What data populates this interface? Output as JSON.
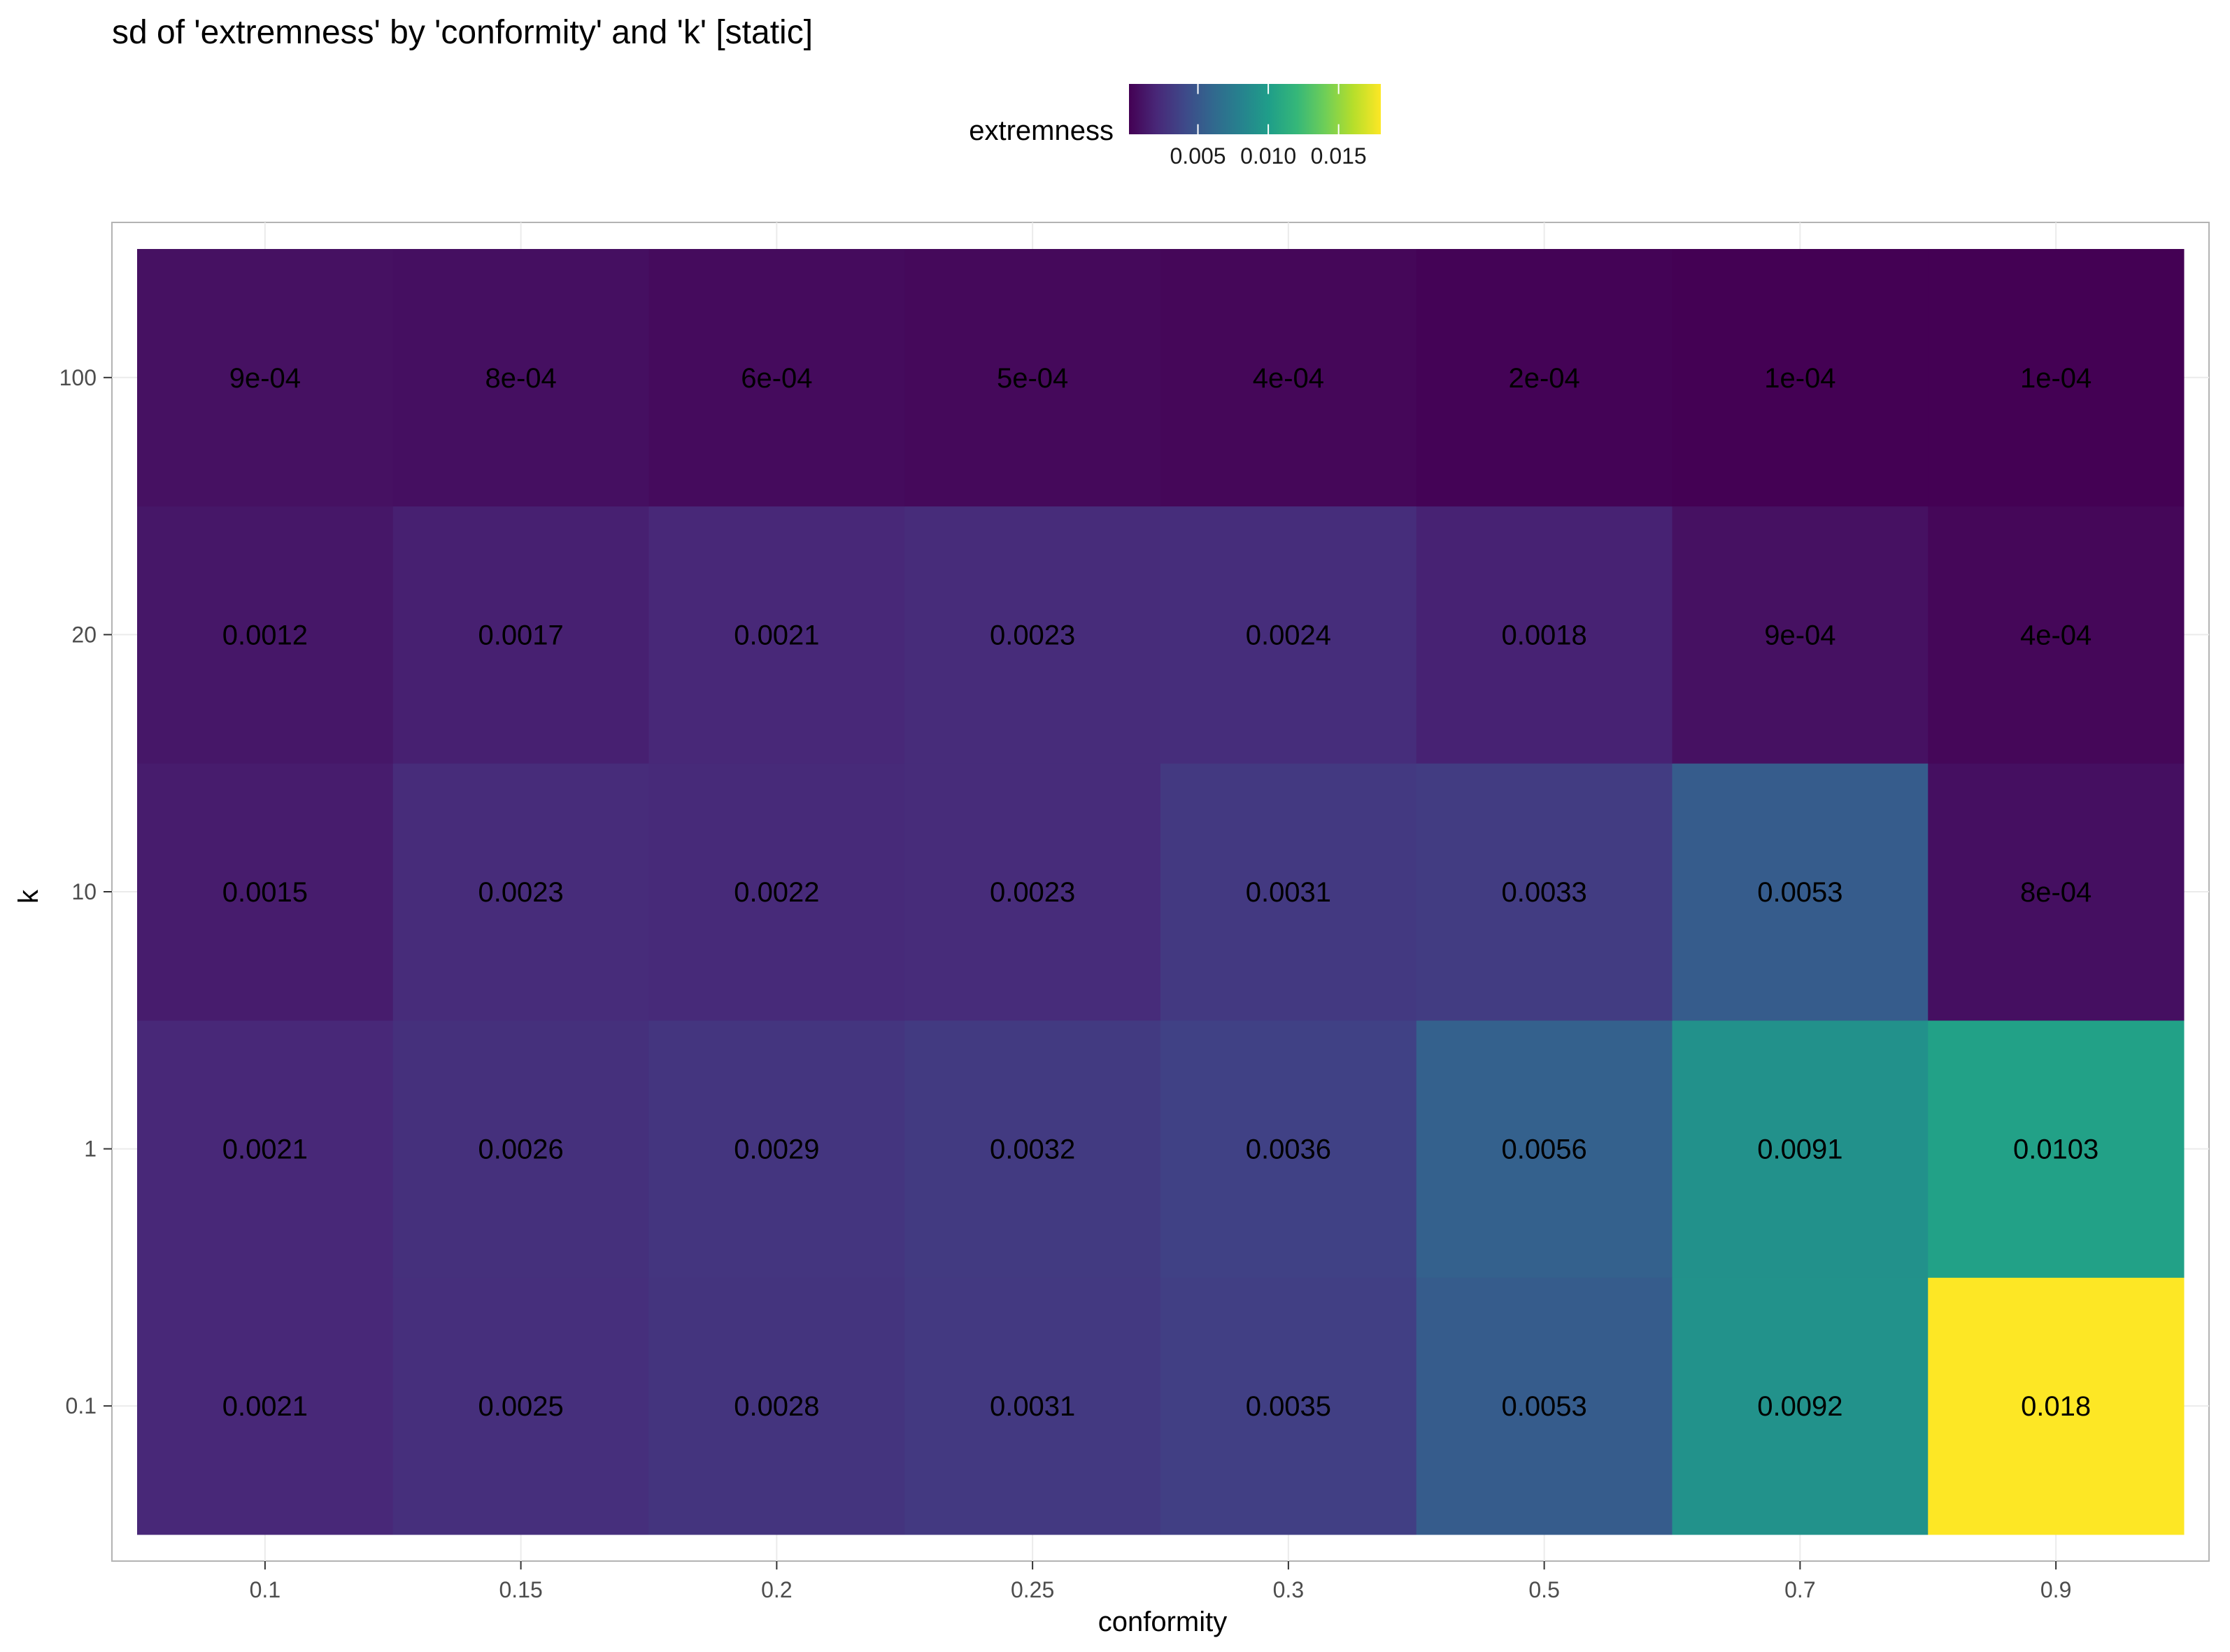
{
  "chart_data": {
    "type": "heatmap",
    "title": "sd of 'extremness' by  'conformity' and 'k' [static]",
    "xlabel": "conformity",
    "ylabel": "k",
    "x_categories": [
      "0.1",
      "0.15",
      "0.2",
      "0.25",
      "0.3",
      "0.5",
      "0.7",
      "0.9"
    ],
    "y_categories": [
      "0.1",
      "1",
      "10",
      "20",
      "100"
    ],
    "values": [
      [
        0.0021,
        0.0025,
        0.0028,
        0.0031,
        0.0035,
        0.0053,
        0.0092,
        0.018
      ],
      [
        0.0021,
        0.0026,
        0.0029,
        0.0032,
        0.0036,
        0.0056,
        0.0091,
        0.0103
      ],
      [
        0.0015,
        0.0023,
        0.0022,
        0.0023,
        0.0031,
        0.0033,
        0.0053,
        0.0008
      ],
      [
        0.0012,
        0.0017,
        0.0021,
        0.0023,
        0.0024,
        0.0018,
        0.0009,
        0.0004
      ],
      [
        0.0009,
        0.0008,
        0.0006,
        0.0005,
        0.0004,
        0.0002,
        0.0001,
        0.0001
      ]
    ],
    "labels": [
      [
        "0.0021",
        "0.0025",
        "0.0028",
        "0.0031",
        "0.0035",
        "0.0053",
        "0.0092",
        "0.018"
      ],
      [
        "0.0021",
        "0.0026",
        "0.0029",
        "0.0032",
        "0.0036",
        "0.0056",
        "0.0091",
        "0.0103"
      ],
      [
        "0.0015",
        "0.0023",
        "0.0022",
        "0.0023",
        "0.0031",
        "0.0033",
        "0.0053",
        "8e-04"
      ],
      [
        "0.0012",
        "0.0017",
        "0.0021",
        "0.0023",
        "0.0024",
        "0.0018",
        "9e-04",
        "4e-04"
      ],
      [
        "9e-04",
        "8e-04",
        "6e-04",
        "5e-04",
        "4e-04",
        "2e-04",
        "1e-04",
        "1e-04"
      ]
    ],
    "color_scale": {
      "name": "viridis",
      "domain": [
        0.0001,
        0.018
      ],
      "stops": [
        "#440154",
        "#482878",
        "#3e4989",
        "#31688e",
        "#26828e",
        "#1f9e89",
        "#35b779",
        "#6ece58",
        "#b5de2b",
        "#fde725"
      ]
    },
    "legend": {
      "title": "extremness",
      "position": "top",
      "ticks": [
        0.005,
        0.01,
        0.015
      ],
      "tick_labels": [
        "0.005",
        "0.010",
        "0.015"
      ]
    },
    "grid": true,
    "panel_border": "#b3b3b3",
    "grid_color": "#ebebeb"
  }
}
